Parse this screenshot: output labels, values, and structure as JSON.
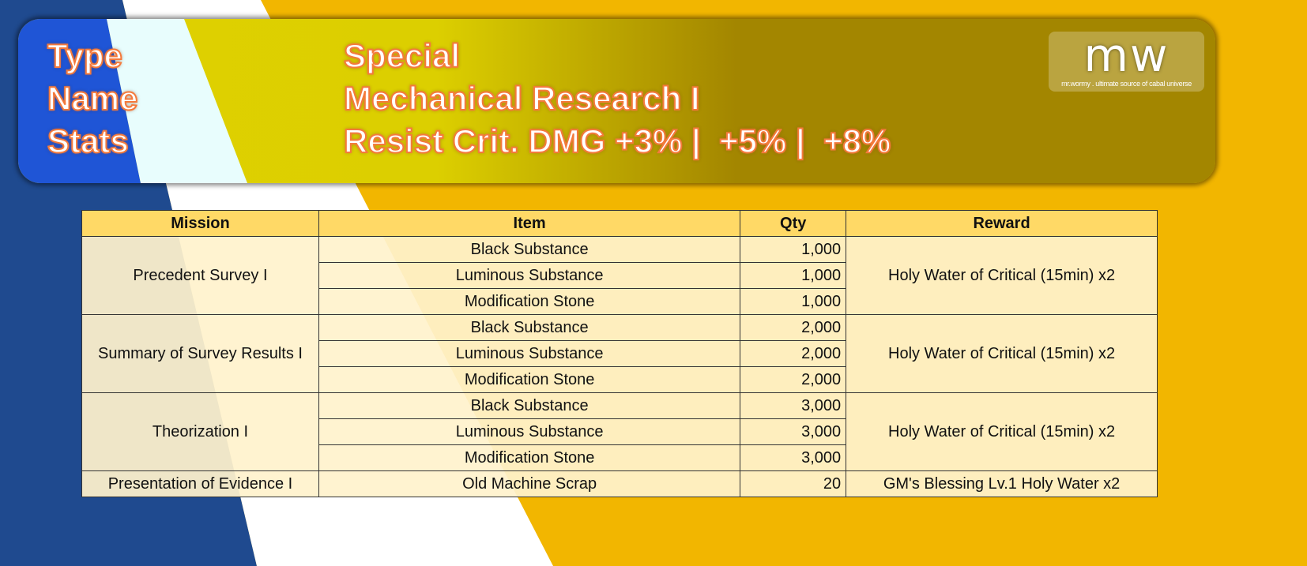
{
  "header": {
    "labels": [
      "Type",
      "Name",
      "Stats"
    ],
    "values": {
      "type": "Special",
      "name": "Mechanical Research I",
      "stats": "Resist Crit. DMG +3% |  +5% |  +8%"
    }
  },
  "logo": {
    "mark": "mw",
    "tagline": "mr.wormy . ultimate source of cabal universe"
  },
  "colors": {
    "blue": "#1f4a8f",
    "accent_blue": "#1f55d6",
    "yellow": "#f2b600",
    "header_fill": "#ffd966",
    "cell_fill": "#fff2cc",
    "text_outline": "#f47a3c"
  },
  "table": {
    "columns": [
      "Mission",
      "Item",
      "Qty",
      "Reward"
    ],
    "missions": [
      {
        "mission": "Precedent Survey I",
        "reward": "Holy Water of Critical (15min) x2",
        "items": [
          {
            "item": "Black Substance",
            "qty": "1,000"
          },
          {
            "item": "Luminous Substance",
            "qty": "1,000"
          },
          {
            "item": "Modification Stone",
            "qty": "1,000"
          }
        ]
      },
      {
        "mission": "Summary of Survey Results I",
        "reward": "Holy Water of Critical (15min) x2",
        "items": [
          {
            "item": "Black Substance",
            "qty": "2,000"
          },
          {
            "item": "Luminous Substance",
            "qty": "2,000"
          },
          {
            "item": "Modification Stone",
            "qty": "2,000"
          }
        ]
      },
      {
        "mission": "Theorization I",
        "reward": "Holy Water of Critical (15min) x2",
        "items": [
          {
            "item": "Black Substance",
            "qty": "3,000"
          },
          {
            "item": "Luminous Substance",
            "qty": "3,000"
          },
          {
            "item": "Modification Stone",
            "qty": "3,000"
          }
        ]
      },
      {
        "mission": "Presentation of Evidence I",
        "reward": "GM's Blessing Lv.1 Holy Water x2",
        "items": [
          {
            "item": "Old Machine Scrap",
            "qty": "20"
          }
        ]
      }
    ]
  }
}
